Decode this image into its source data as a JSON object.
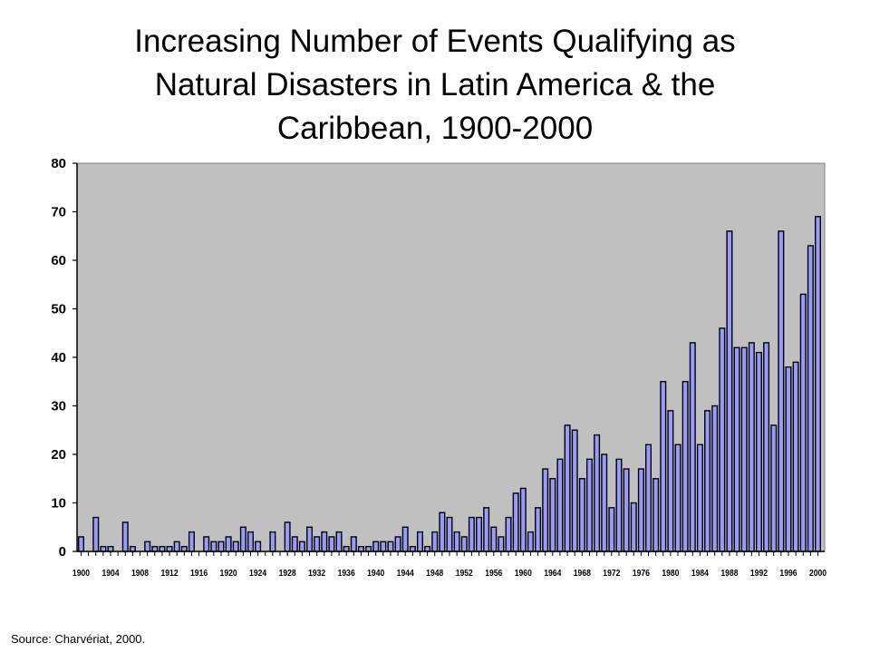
{
  "title_lines": [
    "Increasing Number of Events Qualifying as",
    "Natural Disasters in Latin America & the",
    "Caribbean, 1900-2000"
  ],
  "source": "Source: Charvériat, 2000.",
  "colors": {
    "plot_bg": "#c0c0c0",
    "bar_fill": "#9999ff",
    "bar_stroke": "#000000"
  },
  "chart_data": {
    "type": "bar",
    "title": "Increasing Number of Events Qualifying as Natural Disasters in Latin America & the Caribbean, 1900-2000",
    "xlabel": "",
    "ylabel": "",
    "ylim": [
      0,
      80
    ],
    "yticks": [
      0,
      10,
      20,
      30,
      40,
      50,
      60,
      70,
      80
    ],
    "xticks": [
      "1900",
      "1904",
      "1908",
      "1912",
      "1916",
      "1920",
      "1924",
      "1928",
      "1932",
      "1936",
      "1940",
      "1944",
      "1948",
      "1952",
      "1956",
      "1960",
      "1964",
      "1968",
      "1972",
      "1976",
      "1980",
      "1984",
      "1988",
      "1992",
      "1996",
      "2000"
    ],
    "grid": false,
    "x": [
      1900,
      1901,
      1902,
      1903,
      1904,
      1905,
      1906,
      1907,
      1908,
      1909,
      1910,
      1911,
      1912,
      1913,
      1914,
      1915,
      1916,
      1917,
      1918,
      1919,
      1920,
      1921,
      1922,
      1923,
      1924,
      1925,
      1926,
      1927,
      1928,
      1929,
      1930,
      1931,
      1932,
      1933,
      1934,
      1935,
      1936,
      1937,
      1938,
      1939,
      1940,
      1941,
      1942,
      1943,
      1944,
      1945,
      1946,
      1947,
      1948,
      1949,
      1950,
      1951,
      1952,
      1953,
      1954,
      1955,
      1956,
      1957,
      1958,
      1959,
      1960,
      1961,
      1962,
      1963,
      1964,
      1965,
      1966,
      1967,
      1968,
      1969,
      1970,
      1971,
      1972,
      1973,
      1974,
      1975,
      1976,
      1977,
      1978,
      1979,
      1980,
      1981,
      1982,
      1983,
      1984,
      1985,
      1986,
      1987,
      1988,
      1989,
      1990,
      1991,
      1992,
      1993,
      1994,
      1995,
      1996,
      1997,
      1998,
      1999,
      2000
    ],
    "values": [
      3,
      0,
      7,
      1,
      1,
      0,
      6,
      1,
      0,
      2,
      1,
      1,
      1,
      2,
      1,
      4,
      0,
      3,
      2,
      2,
      3,
      2,
      5,
      4,
      2,
      0,
      4,
      0,
      6,
      3,
      2,
      5,
      3,
      4,
      3,
      4,
      1,
      3,
      1,
      1,
      2,
      2,
      2,
      3,
      5,
      1,
      4,
      1,
      4,
      8,
      7,
      4,
      3,
      7,
      7,
      9,
      5,
      3,
      7,
      12,
      13,
      4,
      9,
      17,
      15,
      19,
      26,
      25,
      15,
      19,
      24,
      20,
      9,
      19,
      17,
      10,
      17,
      22,
      15,
      35,
      29,
      22,
      35,
      43,
      22,
      29,
      30,
      46,
      66,
      42,
      42,
      43,
      41,
      43,
      26,
      66,
      38,
      39,
      53,
      63,
      69
    ]
  }
}
